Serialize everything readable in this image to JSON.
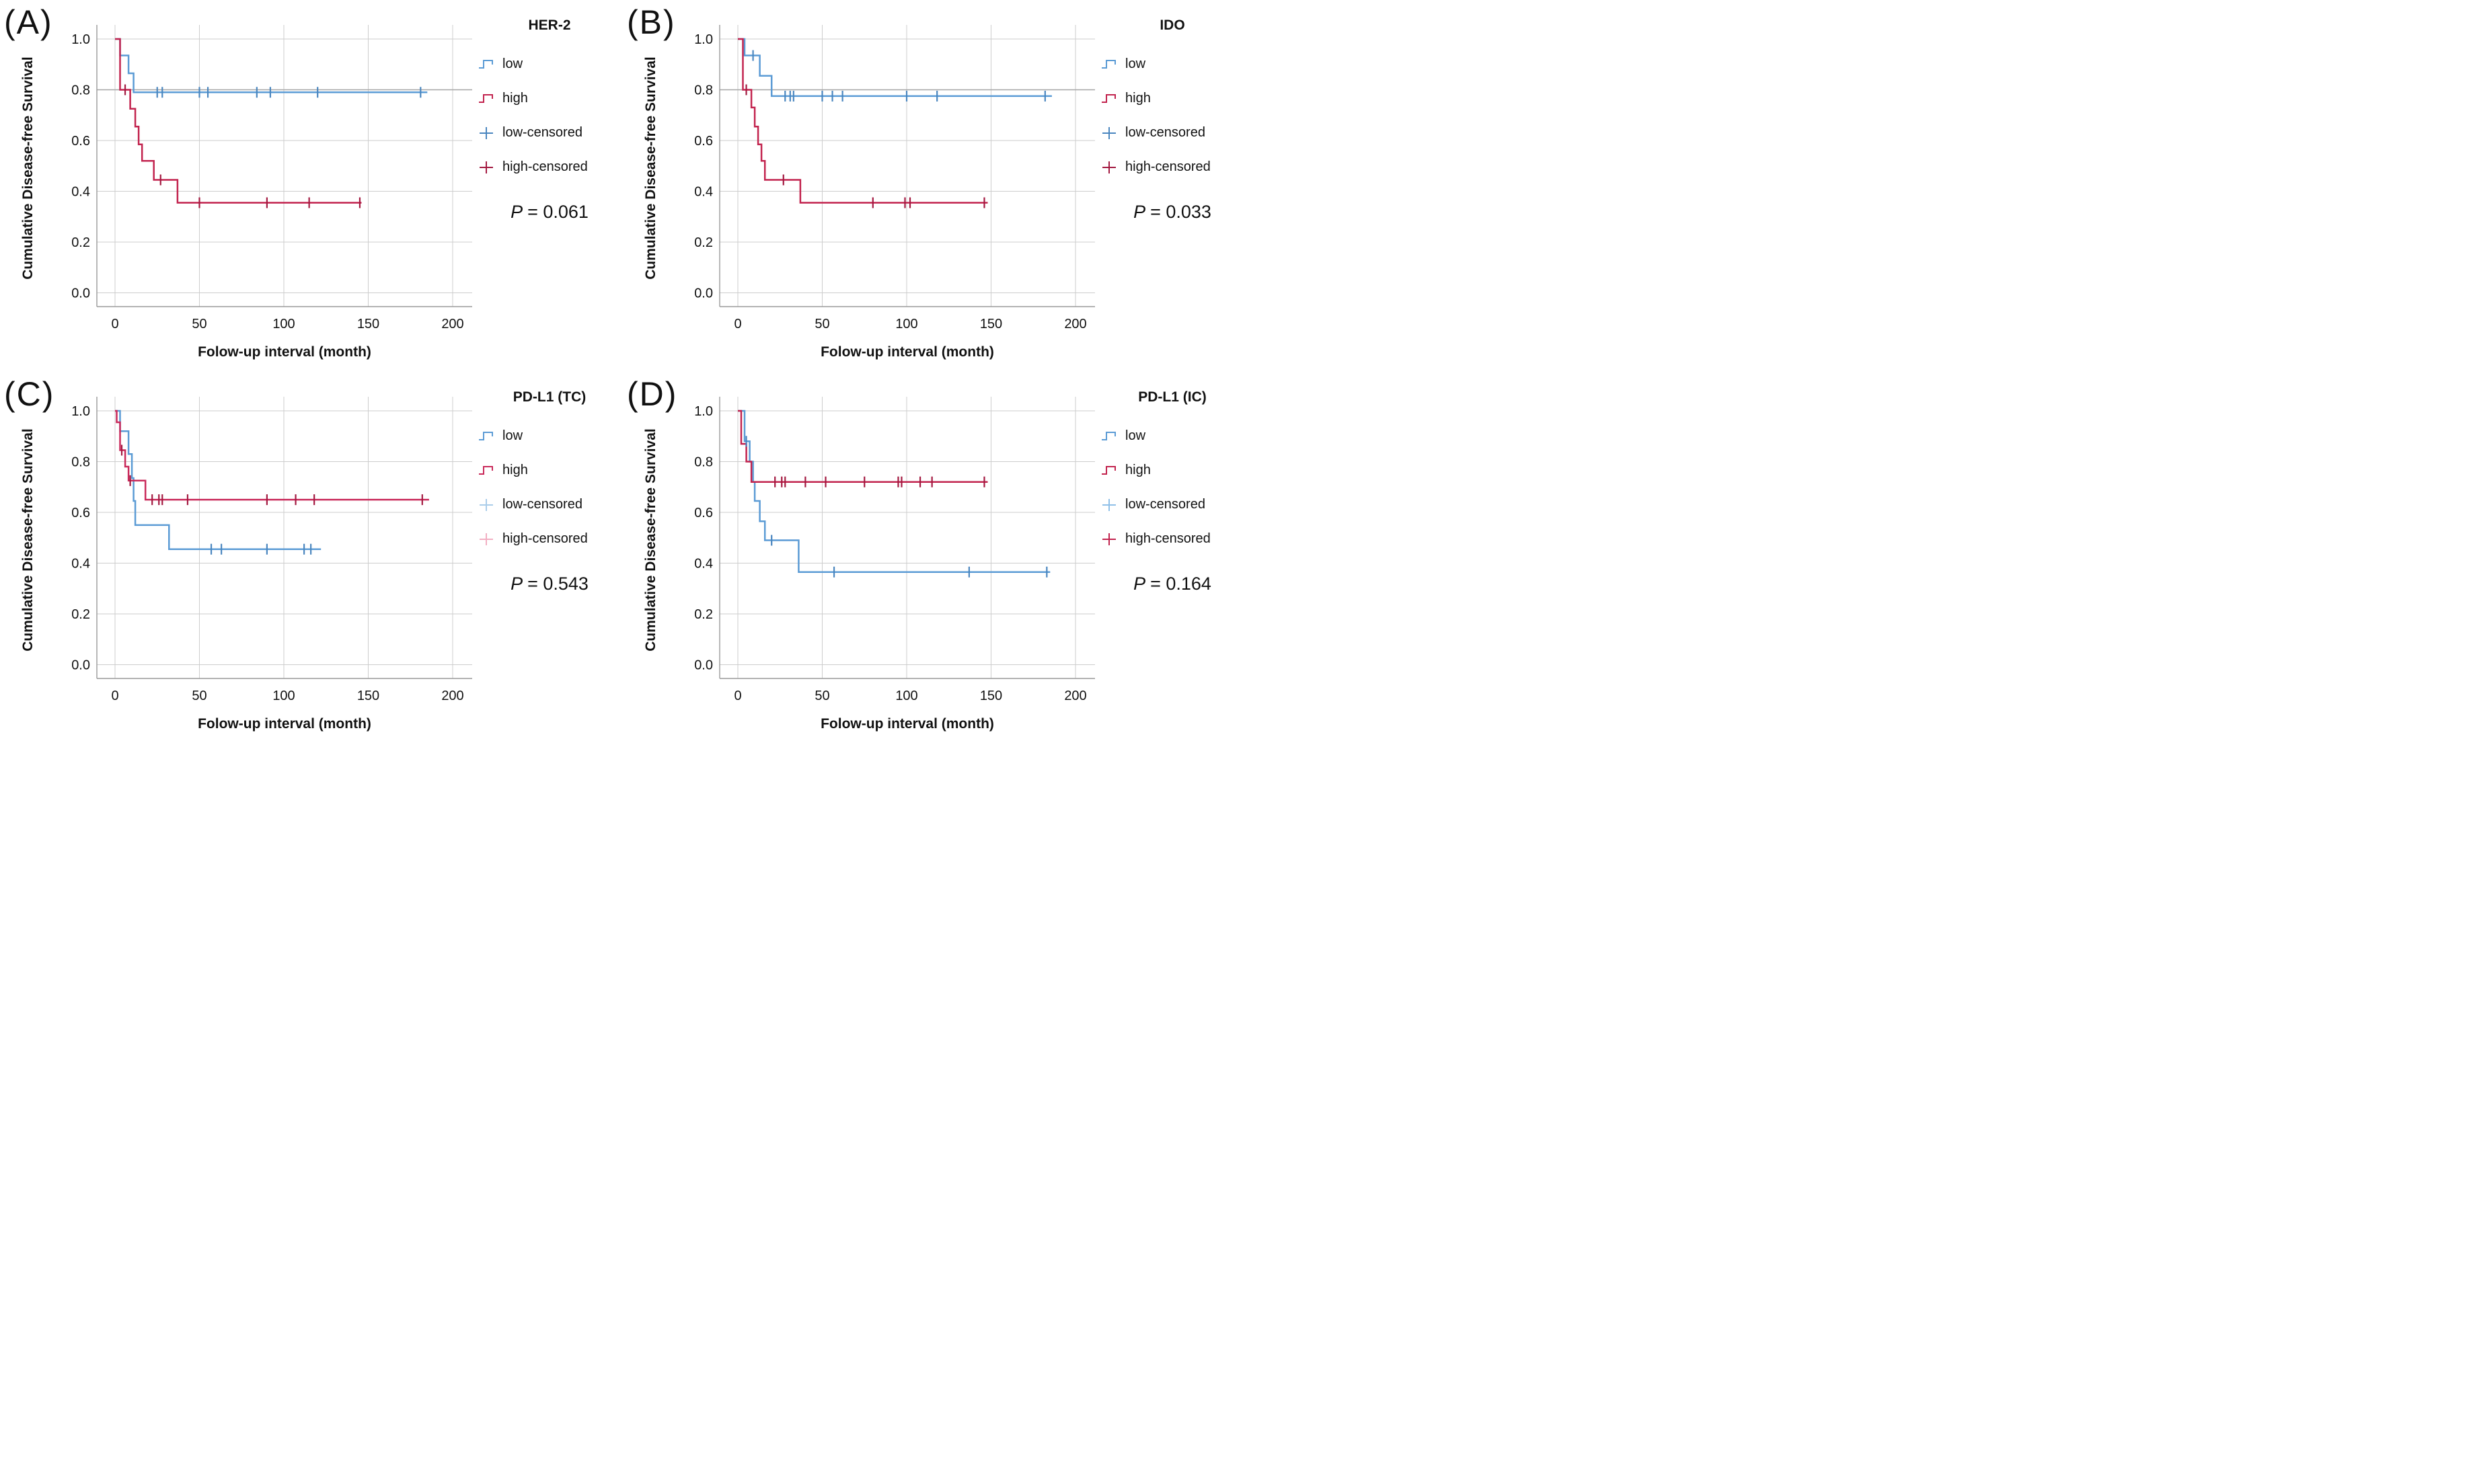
{
  "figure": {
    "kind": "kaplan-meier-survival-figure",
    "background": "#ffffff",
    "grid_color": "#cdcdcd",
    "axis_color": "#9a9a9a",
    "text_color": "#111111"
  },
  "chart_data": [
    {
      "id": "A",
      "label": "(A)",
      "title": "HER-2",
      "type": "line",
      "subtype": "kaplan-meier-step",
      "xlabel": "Folow-up interval (month)",
      "ylabel": "Cumulative Disease-free Survival",
      "x_ticks": [
        0,
        50,
        100,
        150,
        200
      ],
      "y_ticks": [
        1.0,
        0.8,
        0.6,
        0.4,
        0.2,
        0.0
      ],
      "y_tick_labels": [
        "1.0",
        "0.8",
        "0.6",
        "0.4",
        "0.2",
        "0.0"
      ],
      "xlim": [
        -11,
        212
      ],
      "ylim": [
        0,
        1.05
      ],
      "grid": true,
      "legend_position": "right",
      "legend": [
        "low",
        "high",
        "low-censored",
        "high-censored"
      ],
      "p_symbol": "P",
      "p_text": "= 0.061",
      "dark_gridline_at": 0.8,
      "colors": {
        "low": "#5b9bd5",
        "high": "#c2234e",
        "low_censored": "#4a86bf",
        "high_censored": "#a31940",
        "legend_low_censored": "#4a86bf",
        "legend_high_censored": "#a31940"
      },
      "series": [
        {
          "name": "low",
          "steps": [
            [
              0,
              1.0
            ],
            [
              3,
              0.935
            ],
            [
              8,
              0.865
            ],
            [
              11,
              0.79
            ]
          ],
          "end": 185,
          "censors": [
            [
              25,
              0.79
            ],
            [
              28,
              0.79
            ],
            [
              50,
              0.79
            ],
            [
              55,
              0.79
            ],
            [
              84,
              0.79
            ],
            [
              92,
              0.79
            ],
            [
              120,
              0.79
            ],
            [
              181,
              0.79
            ]
          ]
        },
        {
          "name": "high",
          "steps": [
            [
              0,
              1.0
            ],
            [
              3,
              0.8
            ],
            [
              9,
              0.725
            ],
            [
              12,
              0.655
            ],
            [
              14,
              0.585
            ],
            [
              16,
              0.52
            ],
            [
              23,
              0.445
            ],
            [
              37,
              0.355
            ]
          ],
          "end": 146,
          "censors": [
            [
              6,
              0.8
            ],
            [
              27,
              0.445
            ],
            [
              50,
              0.355
            ],
            [
              90,
              0.355
            ],
            [
              115,
              0.355
            ],
            [
              145,
              0.355
            ]
          ]
        }
      ]
    },
    {
      "id": "B",
      "label": "(B)",
      "title": "IDO",
      "type": "line",
      "subtype": "kaplan-meier-step",
      "xlabel": "Folow-up interval (month)",
      "ylabel": "Cumulative Disease-free Survival",
      "x_ticks": [
        0,
        50,
        100,
        150,
        200
      ],
      "y_ticks": [
        1.0,
        0.8,
        0.6,
        0.4,
        0.2,
        0.0
      ],
      "y_tick_labels": [
        "1.0",
        "0.8",
        "0.6",
        "0.4",
        "0.2",
        "0.0"
      ],
      "xlim": [
        -11,
        212
      ],
      "ylim": [
        0,
        1.05
      ],
      "grid": true,
      "legend_position": "right",
      "legend": [
        "low",
        "high",
        "low-censored",
        "high-censored"
      ],
      "p_symbol": "P",
      "p_text": "= 0.033",
      "dark_gridline_at": 0.8,
      "colors": {
        "low": "#5b9bd5",
        "high": "#c2234e",
        "low_censored": "#4a86bf",
        "high_censored": "#a31940",
        "legend_low_censored": "#4a86bf",
        "legend_high_censored": "#a31940"
      },
      "series": [
        {
          "name": "low",
          "steps": [
            [
              0,
              1.0
            ],
            [
              4,
              0.935
            ],
            [
              13,
              0.855
            ],
            [
              20,
              0.775
            ]
          ],
          "end": 186,
          "censors": [
            [
              9,
              0.935
            ],
            [
              28,
              0.775
            ],
            [
              31,
              0.775
            ],
            [
              33,
              0.775
            ],
            [
              50,
              0.775
            ],
            [
              56,
              0.775
            ],
            [
              62,
              0.775
            ],
            [
              100,
              0.775
            ],
            [
              118,
              0.775
            ],
            [
              182,
              0.775
            ]
          ]
        },
        {
          "name": "high",
          "steps": [
            [
              0,
              1.0
            ],
            [
              3,
              0.8
            ],
            [
              8,
              0.73
            ],
            [
              10,
              0.655
            ],
            [
              12,
              0.585
            ],
            [
              14,
              0.52
            ],
            [
              16,
              0.445
            ],
            [
              37,
              0.355
            ]
          ],
          "end": 148,
          "censors": [
            [
              5,
              0.8
            ],
            [
              27,
              0.445
            ],
            [
              80,
              0.355
            ],
            [
              99,
              0.355
            ],
            [
              102,
              0.355
            ],
            [
              146,
              0.355
            ]
          ]
        }
      ]
    },
    {
      "id": "C",
      "label": "(C)",
      "title": "PD-L1 (TC)",
      "type": "line",
      "subtype": "kaplan-meier-step",
      "xlabel": "Folow-up interval (month)",
      "ylabel": "Cumulative Disease-free Survival",
      "x_ticks": [
        0,
        50,
        100,
        150,
        200
      ],
      "y_ticks": [
        1.0,
        0.8,
        0.6,
        0.4,
        0.2,
        0.0
      ],
      "y_tick_labels": [
        "1.0",
        "0.8",
        "0.6",
        "0.4",
        "0.2",
        "0.0"
      ],
      "xlim": [
        -11,
        212
      ],
      "ylim": [
        0,
        1.05
      ],
      "grid": true,
      "legend_position": "right",
      "legend": [
        "low",
        "high",
        "low-censored",
        "high-censored"
      ],
      "p_symbol": "P",
      "p_text": "= 0.543",
      "dark_gridline_at": null,
      "colors": {
        "low": "#5b9bd5",
        "high": "#c9295a",
        "low_censored": "#4a86bf",
        "high_censored": "#a31940",
        "legend_low_censored": "#aacdea",
        "legend_high_censored": "#f2aec2"
      },
      "series": [
        {
          "name": "low",
          "steps": [
            [
              0,
              1.0
            ],
            [
              3,
              0.92
            ],
            [
              8,
              0.83
            ],
            [
              10,
              0.735
            ],
            [
              11,
              0.645
            ],
            [
              12,
              0.55
            ],
            [
              32,
              0.455
            ]
          ],
          "end": 122,
          "censors": [
            [
              57,
              0.455
            ],
            [
              63,
              0.455
            ],
            [
              90,
              0.455
            ],
            [
              112,
              0.455
            ],
            [
              116,
              0.455
            ]
          ]
        },
        {
          "name": "high",
          "steps": [
            [
              0,
              1.0
            ],
            [
              1,
              0.955
            ],
            [
              3,
              0.845
            ],
            [
              6,
              0.78
            ],
            [
              8,
              0.725
            ],
            [
              18,
              0.65
            ]
          ],
          "end": 186,
          "censors": [
            [
              4,
              0.845
            ],
            [
              9,
              0.725
            ],
            [
              22,
              0.65
            ],
            [
              26,
              0.65
            ],
            [
              28,
              0.65
            ],
            [
              43,
              0.65
            ],
            [
              90,
              0.65
            ],
            [
              107,
              0.65
            ],
            [
              118,
              0.65
            ],
            [
              182,
              0.65
            ]
          ]
        }
      ]
    },
    {
      "id": "D",
      "label": "(D)",
      "title": "PD-L1 (IC)",
      "type": "line",
      "subtype": "kaplan-meier-step",
      "xlabel": "Folow-up interval (month)",
      "ylabel": "Cumulative Disease-free Survival",
      "x_ticks": [
        0,
        50,
        100,
        150,
        200
      ],
      "y_ticks": [
        1.0,
        0.8,
        0.6,
        0.4,
        0.2,
        0.0
      ],
      "y_tick_labels": [
        "1.0",
        "0.8",
        "0.6",
        "0.4",
        "0.2",
        "0.0"
      ],
      "xlim": [
        -11,
        212
      ],
      "ylim": [
        0,
        1.05
      ],
      "grid": true,
      "legend_position": "right",
      "legend": [
        "low",
        "high",
        "low-censored",
        "high-censored"
      ],
      "p_symbol": "P",
      "p_text": "= 0.164",
      "dark_gridline_at": null,
      "colors": {
        "low": "#5b9bd5",
        "high": "#c2234e",
        "low_censored": "#4a86bf",
        "high_censored": "#a31940",
        "legend_low_censored": "#8fc0e8",
        "legend_high_censored": "#c2234e"
      },
      "series": [
        {
          "name": "low",
          "steps": [
            [
              0,
              1.0
            ],
            [
              4,
              0.88
            ],
            [
              7,
              0.8
            ],
            [
              9,
              0.72
            ],
            [
              10,
              0.645
            ],
            [
              13,
              0.565
            ],
            [
              16,
              0.49
            ],
            [
              36,
              0.365
            ]
          ],
          "end": 185,
          "censors": [
            [
              5,
              0.88
            ],
            [
              20,
              0.49
            ],
            [
              57,
              0.365
            ],
            [
              137,
              0.365
            ],
            [
              183,
              0.365
            ]
          ]
        },
        {
          "name": "high",
          "steps": [
            [
              0,
              1.0
            ],
            [
              2,
              0.87
            ],
            [
              5,
              0.8
            ],
            [
              8,
              0.72
            ]
          ],
          "end": 148,
          "censors": [
            [
              22,
              0.72
            ],
            [
              26,
              0.72
            ],
            [
              28,
              0.72
            ],
            [
              40,
              0.72
            ],
            [
              52,
              0.72
            ],
            [
              75,
              0.72
            ],
            [
              95,
              0.72
            ],
            [
              97,
              0.72
            ],
            [
              108,
              0.72
            ],
            [
              115,
              0.72
            ],
            [
              146,
              0.72
            ]
          ]
        }
      ]
    }
  ]
}
